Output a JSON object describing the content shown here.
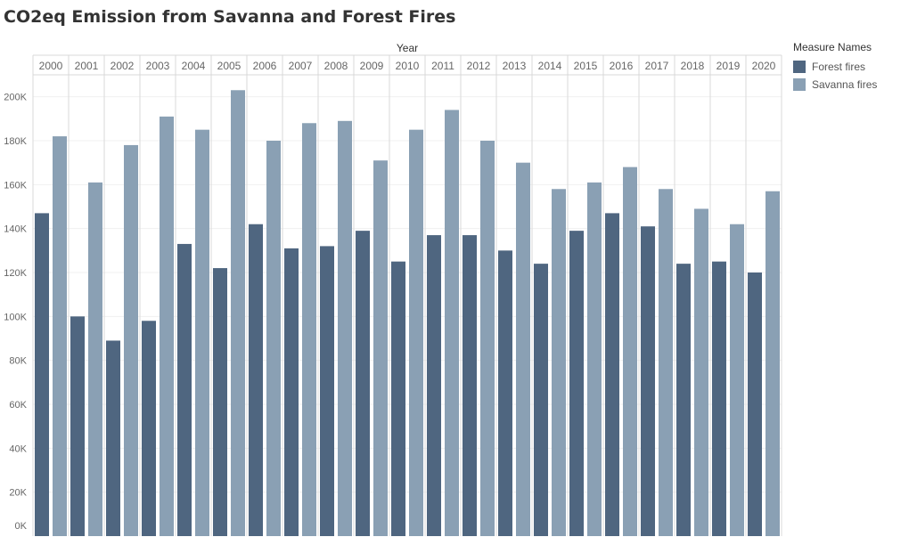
{
  "title": "CO2eq Emission from Savanna and Forest Fires",
  "chart_data": {
    "type": "bar",
    "title": "CO2eq Emission from Savanna and Forest Fires",
    "column_header": "Year",
    "categories": [
      "2000",
      "2001",
      "2002",
      "2003",
      "2004",
      "2005",
      "2006",
      "2007",
      "2008",
      "2009",
      "2010",
      "2011",
      "2012",
      "2013",
      "2014",
      "2015",
      "2016",
      "2017",
      "2018",
      "2019",
      "2020"
    ],
    "series": [
      {
        "name": "Forest fires",
        "color": "#4f6680",
        "values": [
          147000,
          100000,
          89000,
          98000,
          133000,
          122000,
          142000,
          131000,
          132000,
          139000,
          125000,
          137000,
          137000,
          130000,
          124000,
          139000,
          147000,
          141000,
          124000,
          125000,
          120000
        ]
      },
      {
        "name": "Savanna fires",
        "color": "#8aa0b4",
        "values": [
          182000,
          161000,
          178000,
          191000,
          185000,
          203000,
          180000,
          188000,
          189000,
          171000,
          185000,
          194000,
          180000,
          170000,
          158000,
          161000,
          168000,
          158000,
          149000,
          142000,
          157000
        ]
      }
    ],
    "ylim": [
      0,
      210000
    ],
    "yticks": [
      0,
      20000,
      40000,
      60000,
      80000,
      100000,
      120000,
      140000,
      160000,
      180000,
      200000
    ],
    "ytick_labels": [
      "0K",
      "20K",
      "40K",
      "60K",
      "80K",
      "100K",
      "120K",
      "140K",
      "160K",
      "180K",
      "200K"
    ],
    "legend": {
      "title": "Measure Names",
      "placement": "right",
      "entries": [
        "Forest fires",
        "Savanna fires"
      ]
    },
    "grid": true
  }
}
